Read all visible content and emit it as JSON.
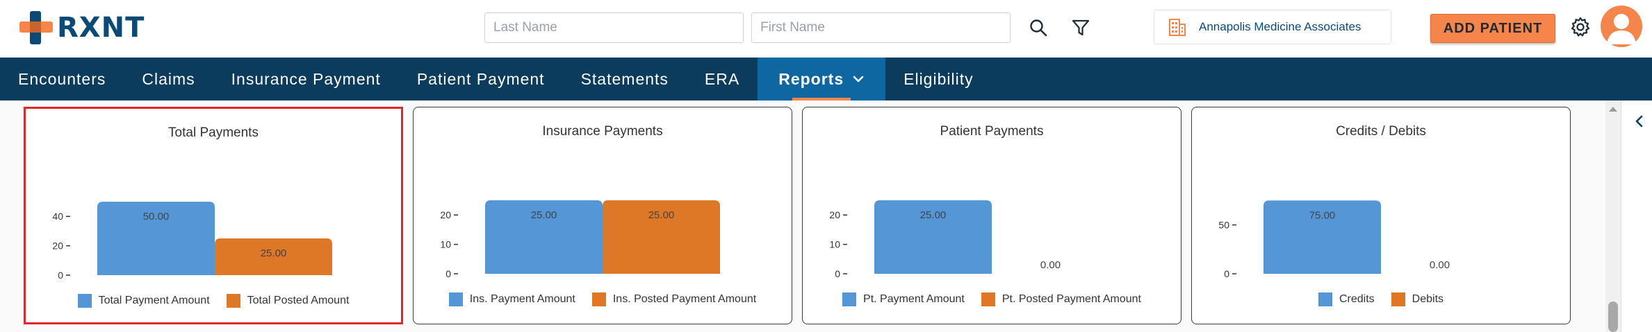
{
  "header": {
    "logo_text": "RXNT",
    "last_name_placeholder": "Last Name",
    "first_name_placeholder": "First Name",
    "practice_name": "Annapolis Medicine Associates",
    "add_patient_label": "ADD PATIENT"
  },
  "nav": {
    "items": [
      {
        "label": "Encounters"
      },
      {
        "label": "Claims"
      },
      {
        "label": "Insurance Payment"
      },
      {
        "label": "Patient Payment"
      },
      {
        "label": "Statements"
      },
      {
        "label": "ERA"
      },
      {
        "label": "Reports"
      },
      {
        "label": "Eligibility"
      }
    ],
    "active": "Reports"
  },
  "colors": {
    "brand_navy": "#0b3c5d",
    "accent_orange": "#f5854a",
    "series_blue": "#5596d6",
    "series_orange": "#de7726",
    "selected_border": "#e2262e"
  },
  "chart_data": [
    {
      "type": "bar",
      "title": "Total Payments",
      "categories": [
        "Total Payment Amount",
        "Total Posted Amount"
      ],
      "values": [
        50,
        25
      ],
      "data_labels": [
        "50.00",
        "25.00"
      ],
      "yticks": [
        0,
        20,
        40
      ],
      "ylim": [
        0,
        50
      ],
      "legend": [
        "Total Payment Amount",
        "Total Posted Amount"
      ],
      "legend_position": "bottom",
      "selected": true
    },
    {
      "type": "bar",
      "title": "Insurance Payments",
      "categories": [
        "Ins. Payment Amount",
        "Ins. Posted Payment Amount"
      ],
      "values": [
        25,
        25
      ],
      "data_labels": [
        "25.00",
        "25.00"
      ],
      "yticks": [
        0,
        10,
        20
      ],
      "ylim": [
        0,
        25
      ],
      "legend": [
        "Ins. Payment Amount",
        "Ins. Posted Payment Amount"
      ],
      "legend_position": "bottom"
    },
    {
      "type": "bar",
      "title": "Patient Payments",
      "categories": [
        "Pt. Payment Amount",
        "Pt. Posted Payment Amount"
      ],
      "values": [
        25,
        0
      ],
      "data_labels": [
        "25.00",
        "0.00"
      ],
      "yticks": [
        0,
        10,
        20
      ],
      "ylim": [
        0,
        25
      ],
      "legend": [
        "Pt. Payment Amount",
        "Pt. Posted Payment Amount"
      ],
      "legend_position": "bottom"
    },
    {
      "type": "bar",
      "title": "Credits / Debits",
      "categories": [
        "Credits",
        "Debits"
      ],
      "values": [
        75,
        0
      ],
      "data_labels": [
        "75.00",
        "0.00"
      ],
      "yticks": [
        0,
        50
      ],
      "ylim": [
        0,
        75
      ],
      "legend": [
        "Credits",
        "Debits"
      ],
      "legend_position": "bottom"
    }
  ]
}
